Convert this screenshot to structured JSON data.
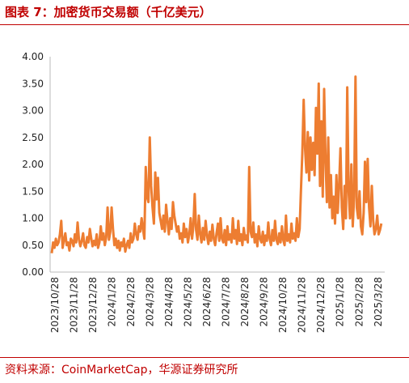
{
  "header": {
    "title": "图表 7：加密货币交易额（千亿美元）"
  },
  "footer": {
    "source": "资料来源：CoinMarketCap，华源证券研究所"
  },
  "colors": {
    "accent": "#c00000",
    "line": "#ed7d31"
  },
  "chart_data": {
    "type": "line",
    "title": "加密货币交易额（千亿美元）",
    "xlabel": "",
    "ylabel": "",
    "ylim": [
      0,
      4
    ],
    "y_ticks": [
      "0.00",
      "0.50",
      "1.00",
      "1.50",
      "2.00",
      "2.50",
      "3.00",
      "3.50",
      "4.00"
    ],
    "x_ticks": [
      "2023/10/28",
      "2023/11/28",
      "2023/12/28",
      "2024/1/28",
      "2024/2/28",
      "2024/3/28",
      "2024/4/28",
      "2024/5/28",
      "2024/6/28",
      "2024/7/28",
      "2024/8/28",
      "2024/9/28",
      "2024/10/28",
      "2024/11/28",
      "2024/12/28",
      "2025/1/28",
      "2025/2/28",
      "2025/3/28"
    ],
    "grid": false,
    "legend": "none",
    "series": [
      {
        "values": [
          0.35,
          0.55,
          0.45,
          0.62,
          0.5,
          0.55,
          0.7,
          0.95,
          0.45,
          0.6,
          0.72,
          0.5,
          0.55,
          0.4,
          0.62,
          0.58,
          0.48,
          0.7,
          0.55,
          0.92,
          0.6,
          0.48,
          0.58,
          0.72,
          0.5,
          0.45,
          0.65,
          0.55,
          0.8,
          0.62,
          0.48,
          0.58,
          0.5,
          0.7,
          0.45,
          0.55,
          0.85,
          0.6,
          0.72,
          0.5,
          0.65,
          1.2,
          0.6,
          0.75,
          1.2,
          0.8,
          0.5,
          0.62,
          0.45,
          0.58,
          0.4,
          0.55,
          0.48,
          0.62,
          0.38,
          0.5,
          0.58,
          0.45,
          0.72,
          0.55,
          0.62,
          0.9,
          0.7,
          0.6,
          0.85,
          0.75,
          1.0,
          0.8,
          0.62,
          1.95,
          1.4,
          1.3,
          2.5,
          1.6,
          1.2,
          0.9,
          1.85,
          1.35,
          1.75,
          1.1,
          0.95,
          0.8,
          1.05,
          0.75,
          1.25,
          0.95,
          0.7,
          1.0,
          0.8,
          1.3,
          1.05,
          0.9,
          0.75,
          0.85,
          0.62,
          0.72,
          0.55,
          0.9,
          0.65,
          0.8,
          0.55,
          0.7,
          1.0,
          0.62,
          0.85,
          1.45,
          0.78,
          0.6,
          1.05,
          0.7,
          0.55,
          0.82,
          0.6,
          0.95,
          0.68,
          0.52,
          0.75,
          0.58,
          0.88,
          0.62,
          0.5,
          0.72,
          0.9,
          0.58,
          1.0,
          0.62,
          0.55,
          0.78,
          0.5,
          0.85,
          0.6,
          0.7,
          0.55,
          1.0,
          0.62,
          0.78,
          0.52,
          0.95,
          0.58,
          0.7,
          0.5,
          0.82,
          0.6,
          0.68,
          0.55,
          1.95,
          0.75,
          0.65,
          0.92,
          0.55,
          0.7,
          0.48,
          0.85,
          0.62,
          0.55,
          0.75,
          0.5,
          0.68,
          0.58,
          0.92,
          0.62,
          0.5,
          0.78,
          0.58,
          0.95,
          0.6,
          0.52,
          0.72,
          0.55,
          0.85,
          0.6,
          0.5,
          1.05,
          0.58,
          0.7,
          0.55,
          0.9,
          0.62,
          0.72,
          0.58,
          1.0,
          0.65,
          0.8,
          1.55,
          2.2,
          3.2,
          2.3,
          1.85,
          2.6,
          1.7,
          2.5,
          1.9,
          2.4,
          1.8,
          3.05,
          2.2,
          3.5,
          1.6,
          2.8,
          1.4,
          3.4,
          2.1,
          1.3,
          2.5,
          1.2,
          1.8,
          1.0,
          1.4,
          0.9,
          1.8,
          1.1,
          1.6,
          2.3,
          1.2,
          0.8,
          1.6,
          1.0,
          3.43,
          1.5,
          1.0,
          2.0,
          0.85,
          1.4,
          3.63,
          1.2,
          1.0,
          1.5,
          0.85,
          0.7,
          1.1,
          2.05,
          1.3,
          2.1,
          1.2,
          0.85,
          1.6,
          0.95,
          0.7,
          0.8,
          1.05,
          0.7,
          0.78,
          0.9
        ]
      }
    ]
  }
}
